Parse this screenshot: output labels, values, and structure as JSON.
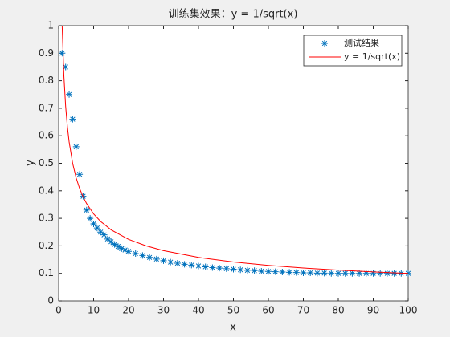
{
  "chart_data": {
    "type": "scatter-line",
    "title": "训练集效果：y = 1/sqrt(x)",
    "xlabel": "x",
    "ylabel": "y",
    "xlim": [
      0,
      100
    ],
    "xticks": [
      0,
      10,
      20,
      30,
      40,
      50,
      60,
      70,
      80,
      90,
      100
    ],
    "ylim": [
      0,
      1
    ],
    "yticks": [
      0,
      0.1,
      0.2,
      0.3,
      0.4,
      0.5,
      0.6,
      0.7,
      0.8,
      0.9,
      1
    ],
    "grid": false,
    "legend": "upper right",
    "series": [
      {
        "name": "测试结果",
        "kind": "marker",
        "color": "#0072bd",
        "x": [
          1,
          2,
          3,
          4,
          5,
          6,
          7,
          8,
          9,
          10,
          11,
          12,
          13,
          14,
          15,
          16,
          17,
          18,
          19,
          20,
          22,
          24,
          26,
          28,
          30,
          32,
          34,
          36,
          38,
          40,
          42,
          44,
          46,
          48,
          50,
          52,
          54,
          56,
          58,
          60,
          62,
          64,
          66,
          68,
          70,
          72,
          74,
          76,
          78,
          80,
          82,
          84,
          86,
          88,
          90,
          92,
          94,
          96,
          98,
          100
        ],
        "values": [
          0.9,
          0.85,
          0.75,
          0.66,
          0.56,
          0.46,
          0.38,
          0.33,
          0.3,
          0.28,
          0.265,
          0.25,
          0.24,
          0.225,
          0.215,
          0.205,
          0.198,
          0.19,
          0.185,
          0.18,
          0.172,
          0.165,
          0.158,
          0.152,
          0.146,
          0.141,
          0.137,
          0.133,
          0.13,
          0.127,
          0.124,
          0.121,
          0.119,
          0.117,
          0.115,
          0.113,
          0.111,
          0.11,
          0.108,
          0.107,
          0.106,
          0.105,
          0.104,
          0.103,
          0.102,
          0.102,
          0.101,
          0.101,
          0.1,
          0.1,
          0.1,
          0.1,
          0.1,
          0.1,
          0.1,
          0.1,
          0.1,
          0.1,
          0.1,
          0.1
        ]
      },
      {
        "name": "y = 1/sqrt(x)",
        "kind": "line",
        "color": "#ff0000",
        "x": [
          1,
          1.5,
          2,
          2.5,
          3,
          4,
          5,
          6,
          7,
          8,
          10,
          12,
          15,
          20,
          25,
          30,
          40,
          50,
          60,
          70,
          80,
          90,
          100
        ],
        "values": [
          1,
          0.8165,
          0.7071,
          0.6325,
          0.5774,
          0.5,
          0.4472,
          0.4082,
          0.378,
          0.3536,
          0.3162,
          0.2887,
          0.2582,
          0.2236,
          0.2,
          0.1826,
          0.1581,
          0.1414,
          0.1291,
          0.1195,
          0.1118,
          0.1054,
          0.1
        ]
      }
    ]
  }
}
